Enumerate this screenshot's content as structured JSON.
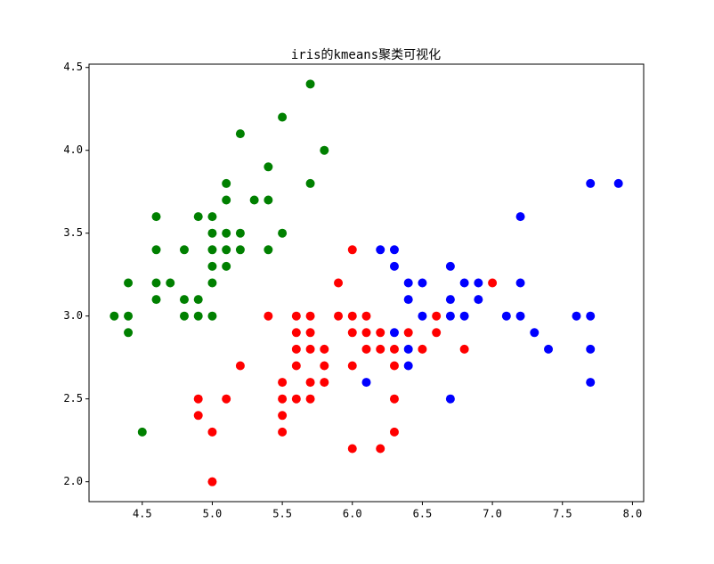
{
  "chart_data": {
    "type": "scatter",
    "title": "iris的kmeans聚类可视化",
    "xlim": [
      4.12,
      8.08
    ],
    "ylim": [
      1.88,
      4.52
    ],
    "xticks": [
      4.5,
      {
        "value": 5,
        "label": "5.0"
      },
      5.5,
      {
        "value": 6,
        "label": "6.0"
      },
      6.5,
      {
        "value": 7,
        "label": "7.0"
      },
      7.5,
      {
        "value": 8,
        "label": "8.0"
      }
    ],
    "yticks": [
      {
        "value": 2,
        "label": "2.0"
      },
      2.5,
      {
        "value": 3,
        "label": "3.0"
      },
      3.5,
      {
        "value": 4,
        "label": "4.0"
      },
      4.5
    ],
    "series": [
      {
        "color": "#008000",
        "x": [
          5.7,
          5.5,
          5.2,
          5.8,
          5.4,
          5.1,
          5.7,
          5.1,
          5.3,
          5.4,
          4.6,
          4.9,
          5.0,
          5.0,
          5.1,
          5.2,
          5.5,
          4.6,
          4.8,
          5.0,
          5.1,
          5.2,
          5.4,
          5.0,
          5.1,
          4.4,
          4.6,
          4.7,
          5.0,
          4.6,
          4.8,
          4.9,
          4.3,
          4.4,
          4.8,
          4.9,
          5.0,
          4.4,
          4.5
        ],
        "y": [
          4.4,
          4.2,
          4.1,
          4.0,
          3.9,
          3.8,
          3.8,
          3.7,
          3.7,
          3.7,
          3.6,
          3.6,
          3.6,
          3.5,
          3.5,
          3.5,
          3.5,
          3.4,
          3.4,
          3.4,
          3.4,
          3.4,
          3.4,
          3.3,
          3.3,
          3.2,
          3.2,
          3.2,
          3.2,
          3.1,
          3.1,
          3.1,
          3.0,
          3.0,
          3.0,
          3.0,
          3.0,
          2.9,
          2.3
        ]
      },
      {
        "color": "#0000ff",
        "x": [
          7.7,
          7.9,
          7.2,
          6.2,
          6.3,
          6.3,
          6.7,
          6.4,
          6.5,
          6.8,
          6.9,
          7.2,
          6.4,
          6.7,
          6.9,
          6.5,
          6.7,
          6.8,
          7.1,
          7.2,
          7.6,
          7.7,
          6.3,
          7.3,
          6.4,
          7.4,
          7.7,
          6.4,
          6.1,
          7.7,
          6.7
        ],
        "y": [
          3.8,
          3.8,
          3.6,
          3.4,
          3.4,
          3.3,
          3.3,
          3.2,
          3.2,
          3.2,
          3.2,
          3.2,
          3.1,
          3.1,
          3.1,
          3.0,
          3.0,
          3.0,
          3.0,
          3.0,
          3.0,
          3.0,
          2.9,
          2.9,
          2.8,
          2.8,
          2.8,
          2.7,
          2.6,
          2.6,
          2.5
        ]
      },
      {
        "color": "#ff0000",
        "x": [
          6.0,
          5.9,
          7.0,
          5.4,
          5.6,
          5.7,
          5.9,
          6.0,
          6.1,
          6.6,
          5.6,
          5.7,
          6.0,
          6.1,
          6.2,
          6.4,
          6.6,
          5.6,
          5.7,
          5.8,
          6.1,
          6.2,
          6.3,
          6.5,
          6.8,
          5.2,
          5.6,
          5.8,
          6.0,
          6.3,
          5.5,
          5.7,
          5.8,
          4.9,
          5.1,
          5.5,
          5.6,
          5.7,
          6.3,
          4.9,
          5.5,
          5.0,
          5.5,
          6.3,
          6.0,
          6.2,
          5.0
        ],
        "y": [
          3.4,
          3.2,
          3.2,
          3.0,
          3.0,
          3.0,
          3.0,
          3.0,
          3.0,
          3.0,
          2.9,
          2.9,
          2.9,
          2.9,
          2.9,
          2.9,
          2.9,
          2.8,
          2.8,
          2.8,
          2.8,
          2.8,
          2.8,
          2.8,
          2.8,
          2.7,
          2.7,
          2.7,
          2.7,
          2.7,
          2.6,
          2.6,
          2.6,
          2.5,
          2.5,
          2.5,
          2.5,
          2.5,
          2.5,
          2.4,
          2.4,
          2.3,
          2.3,
          2.3,
          2.2,
          2.2,
          2.0
        ]
      }
    ]
  }
}
